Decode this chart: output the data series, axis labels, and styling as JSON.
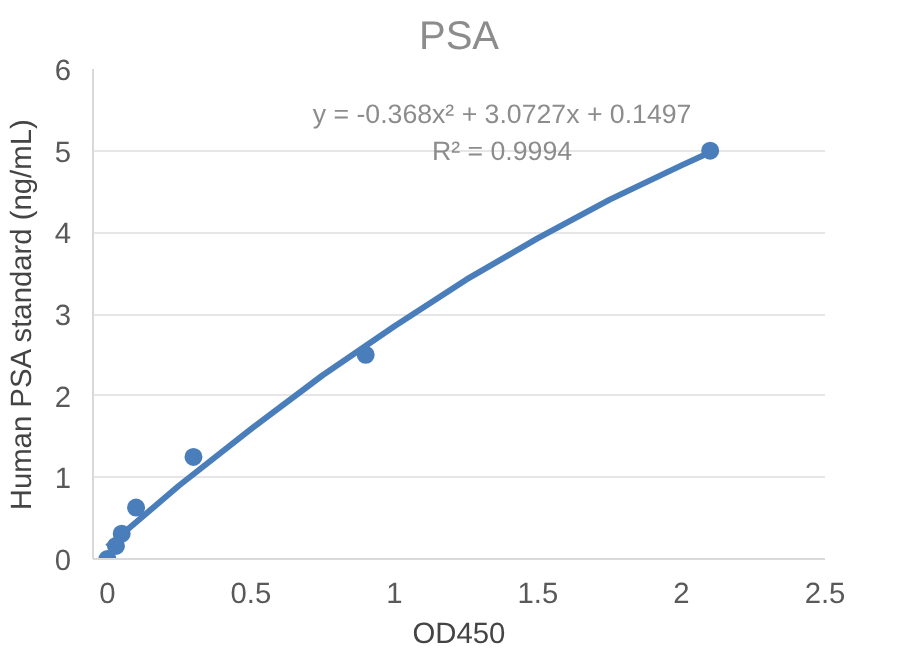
{
  "chart_data": {
    "type": "scatter",
    "title": "PSA",
    "xlabel": "OD450",
    "ylabel": "Human PSA standard (ng/mL)",
    "annotations": [
      "y = -0.368x² + 3.0727x + 0.1497",
      "R² = 0.9994"
    ],
    "series": [
      {
        "color": "#4a7ebb",
        "marker": "circle",
        "x": [
          0,
          0.03,
          0.05,
          0.1,
          0.3,
          0.9,
          2.1
        ],
        "values": [
          0,
          0.16,
          0.31,
          0.63,
          1.25,
          2.5,
          5
        ]
      },
      {
        "type": "line",
        "color": "#4a7ebb",
        "x": [
          0,
          0.25,
          0.5,
          0.75,
          1,
          1.25,
          1.5,
          1.75,
          2,
          2.1
        ],
        "values": [
          0.15,
          0.9,
          1.59,
          2.25,
          2.85,
          3.42,
          3.93,
          4.4,
          4.82,
          4.98
        ]
      }
    ],
    "xlim": [
      -0.05,
      2.5
    ],
    "ylim": [
      0,
      6
    ],
    "xticks": [
      0,
      0.5,
      1,
      1.5,
      2,
      2.5
    ],
    "yticks": [
      0,
      1,
      2,
      3,
      4,
      5,
      6
    ],
    "grid": "y",
    "line_style": "solid"
  }
}
